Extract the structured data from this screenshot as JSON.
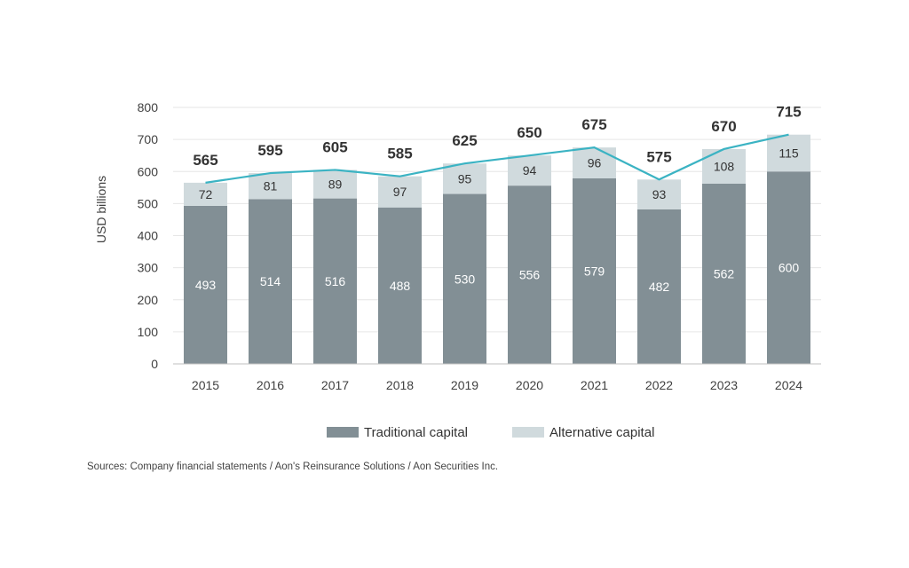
{
  "colors": {
    "traditional": "#828f95",
    "alternative": "#d0dadd",
    "total_line": "#3bb3c3",
    "gridline": "#e6e6e6",
    "axis": "#bfbfbf"
  },
  "chart_data": {
    "type": "bar",
    "stacked": true,
    "title": "",
    "xlabel": "",
    "ylabel": "USD billions",
    "ylim": [
      0,
      800
    ],
    "yticks": [
      0,
      100,
      200,
      300,
      400,
      500,
      600,
      700,
      800
    ],
    "categories": [
      "2015",
      "2016",
      "2017",
      "2018",
      "2019",
      "2020",
      "2021",
      "2022",
      "2023",
      "2024"
    ],
    "series": [
      {
        "name": "Traditional capital",
        "values": [
          493,
          514,
          516,
          488,
          530,
          556,
          579,
          482,
          562,
          600
        ]
      },
      {
        "name": "Alternative capital",
        "values": [
          72,
          81,
          89,
          97,
          95,
          94,
          96,
          93,
          108,
          115
        ]
      }
    ],
    "totals": [
      565,
      595,
      605,
      585,
      625,
      650,
      675,
      575,
      670,
      715
    ],
    "grid": true,
    "legend_position": "bottom"
  },
  "source_note": "Sources: Company financial statements / Aon's Reinsurance Solutions / Aon Securities Inc."
}
